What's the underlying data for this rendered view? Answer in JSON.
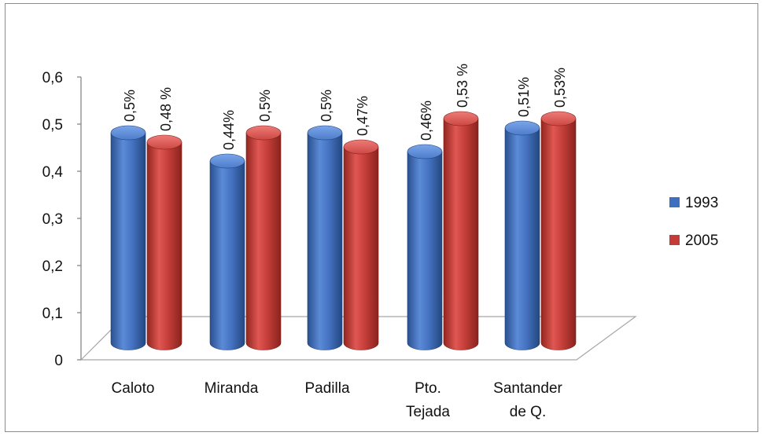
{
  "chart_data": {
    "type": "bar",
    "style": "3d-cylinder",
    "categories": [
      [
        "Caloto"
      ],
      [
        "Miranda"
      ],
      [
        "Padilla"
      ],
      [
        "Pto.",
        "Tejada"
      ],
      [
        "Santander",
        "de Q."
      ]
    ],
    "series": [
      {
        "name": "1993",
        "color": "#3f6fbf",
        "values": [
          0.5,
          0.44,
          0.5,
          0.46,
          0.51
        ],
        "labels": [
          "0,5%",
          "0,44%",
          "0,5%",
          "0,46%",
          "0,51%"
        ]
      },
      {
        "name": "2005",
        "color": "#c43c39",
        "values": [
          0.48,
          0.5,
          0.47,
          0.53,
          0.53
        ],
        "labels": [
          "0,48 %",
          "0,5%",
          "0,47%",
          "0,53 %",
          "0,53%"
        ]
      }
    ],
    "yticks": [
      "0",
      "0,1",
      "0,2",
      "0,3",
      "0,4",
      "0,5",
      "0,6"
    ],
    "ylim": [
      0,
      0.6
    ],
    "legend_position": "right",
    "title": "",
    "xlabel": "",
    "ylabel": ""
  }
}
